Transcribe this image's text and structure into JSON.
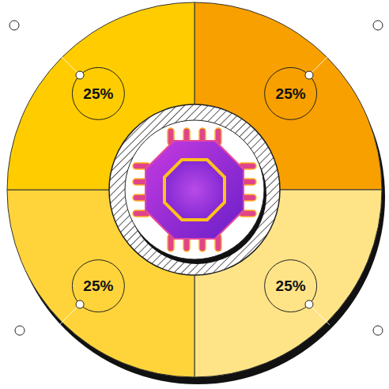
{
  "chart_data": {
    "type": "pie",
    "values": [
      25,
      25,
      25,
      25
    ],
    "value_labels": [
      "25%",
      "25%",
      "25%",
      "25%"
    ],
    "colors": [
      "#F7A000",
      "#FFE487",
      "#FFD43B",
      "#FFCC00"
    ],
    "data_labels": true
  }
}
